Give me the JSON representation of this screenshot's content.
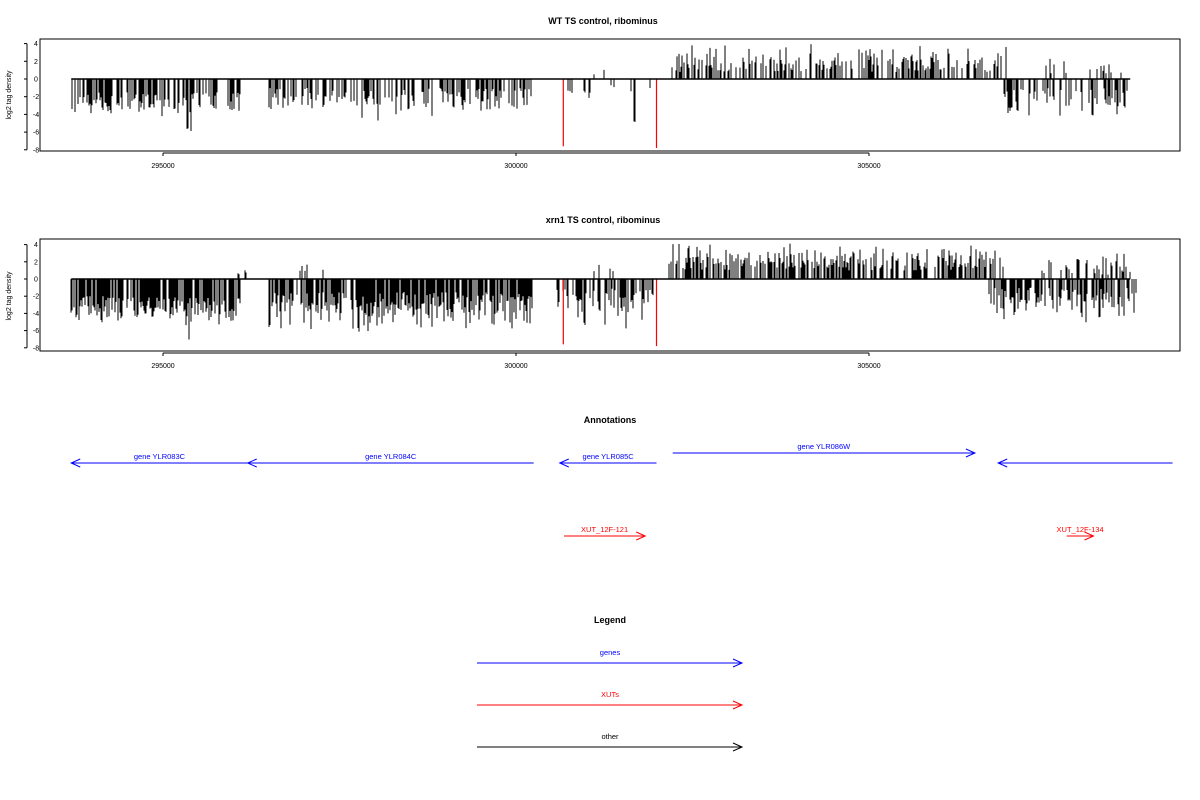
{
  "chart_data": [
    {
      "type": "bar",
      "title": "WT TS control, ribominus",
      "ylabel": "log2 tag density",
      "xlim": [
        293500,
        309300
      ],
      "ylim": [
        -8,
        4.5
      ],
      "x_ticks": [
        295000,
        300000,
        305000
      ],
      "x_tick_labels": [
        "295000",
        "300000",
        "305000"
      ],
      "y_ticks": [
        4,
        2,
        0,
        -2,
        -4,
        -6,
        -8
      ],
      "y_tick_labels": [
        "4",
        "2",
        "0",
        "-2",
        "-4",
        "-6",
        "-8"
      ],
      "baseline": {
        "x_start": 293700,
        "x_end": 308700,
        "y": 0
      },
      "segments": [
        {
          "x_start": 293700,
          "x_end": 296100,
          "sign": -1,
          "min": 1.5,
          "max": 4.5,
          "density": 0.55
        },
        {
          "x_start": 295300,
          "x_end": 295400,
          "sign": -1,
          "min": 5.5,
          "max": 6.3,
          "density": 0.2
        },
        {
          "x_start": 296500,
          "x_end": 300250,
          "sign": -1,
          "min": 1.0,
          "max": 4.8,
          "density": 0.5
        },
        {
          "x_start": 300650,
          "x_end": 301050,
          "sign": -1,
          "min": 0.8,
          "max": 2.5,
          "density": 0.3
        },
        {
          "x_start": 301050,
          "x_end": 301300,
          "sign": 1,
          "min": 0.5,
          "max": 1.5,
          "density": 0.15
        },
        {
          "x_start": 301300,
          "x_end": 301900,
          "sign": -1,
          "min": 0.5,
          "max": 2.0,
          "density": 0.15
        },
        {
          "x_start": 301650,
          "x_end": 301750,
          "sign": -1,
          "min": 4.5,
          "max": 5.0,
          "density": 0.1
        },
        {
          "x_start": 302150,
          "x_end": 306950,
          "sign": 1,
          "min": 0.8,
          "max": 4.0,
          "density": 0.45
        },
        {
          "x_start": 306900,
          "x_end": 308700,
          "sign": -1,
          "min": 1.0,
          "max": 4.7,
          "density": 0.45
        },
        {
          "x_start": 307500,
          "x_end": 308600,
          "sign": 1,
          "min": 0.5,
          "max": 2.6,
          "density": 0.15
        }
      ],
      "highlight_bars": [
        {
          "x": 300670,
          "y": -7.6,
          "color": "#ff0000"
        },
        {
          "x": 301990,
          "y": -7.8,
          "color": "#ff0000"
        }
      ]
    },
    {
      "type": "bar",
      "title": "xrn1 TS control, ribominus",
      "ylabel": "log2 tag density",
      "xlim": [
        293500,
        309300
      ],
      "ylim": [
        -8,
        4.5
      ],
      "x_ticks": [
        295000,
        300000,
        305000
      ],
      "x_tick_labels": [
        "295000",
        "300000",
        "305000"
      ],
      "y_ticks": [
        4,
        2,
        0,
        -2,
        -4,
        -6,
        -8
      ],
      "y_tick_labels": [
        "4",
        "2",
        "0",
        "-2",
        "-4",
        "-6",
        "-8"
      ],
      "baseline": {
        "x_start": 293700,
        "x_end": 308700,
        "y": 0
      },
      "segments": [
        {
          "x_start": 293700,
          "x_end": 296100,
          "sign": -1,
          "min": 2.0,
          "max": 5.5,
          "density": 0.8
        },
        {
          "x_start": 295350,
          "x_end": 295450,
          "sign": -1,
          "min": 6.5,
          "max": 7.6,
          "density": 0.2
        },
        {
          "x_start": 296000,
          "x_end": 296200,
          "sign": 1,
          "min": 0.5,
          "max": 1.3,
          "density": 0.2
        },
        {
          "x_start": 296500,
          "x_end": 300250,
          "sign": -1,
          "min": 1.5,
          "max": 6.5,
          "density": 0.85
        },
        {
          "x_start": 296900,
          "x_end": 297300,
          "sign": 1,
          "min": 0.5,
          "max": 2.0,
          "density": 0.2
        },
        {
          "x_start": 300550,
          "x_end": 301950,
          "sign": -1,
          "min": 1.0,
          "max": 6.0,
          "density": 0.6
        },
        {
          "x_start": 301100,
          "x_end": 301400,
          "sign": 1,
          "min": 0.5,
          "max": 2.0,
          "density": 0.2
        },
        {
          "x_start": 302150,
          "x_end": 306900,
          "sign": 1,
          "min": 1.0,
          "max": 4.3,
          "density": 0.6
        },
        {
          "x_start": 306700,
          "x_end": 308800,
          "sign": -1,
          "min": 1.0,
          "max": 5.4,
          "density": 0.6
        },
        {
          "x_start": 307400,
          "x_end": 308800,
          "sign": 1,
          "min": 0.5,
          "max": 3.4,
          "density": 0.3
        }
      ],
      "highlight_bars": [
        {
          "x": 300670,
          "y": -7.6,
          "color": "#ff0000"
        },
        {
          "x": 301990,
          "y": -7.8,
          "color": "#ff0000"
        }
      ]
    }
  ],
  "annotations": {
    "title": "Annotations",
    "xlim": [
      293500,
      309300
    ],
    "items": [
      {
        "label": "gene YLR083C",
        "x_start": 296200,
        "x_end": 293700,
        "lane": "upper",
        "color": "#0000ff"
      },
      {
        "label": "gene YLR084C",
        "x_start": 300250,
        "x_end": 296200,
        "lane": "upper",
        "color": "#0000ff"
      },
      {
        "label": "gene YLR085C",
        "x_start": 301990,
        "x_end": 300620,
        "lane": "upper",
        "color": "#0000ff"
      },
      {
        "label": "gene YLR086W",
        "x_start": 302220,
        "x_end": 306500,
        "lane": "top",
        "color": "#0000ff"
      },
      {
        "label": "",
        "x_start": 309300,
        "x_end": 306830,
        "lane": "upper",
        "color": "#0000ff"
      },
      {
        "label": "XUT_12F-121",
        "x_start": 300680,
        "x_end": 301830,
        "lane": "lower",
        "color": "#ff0000"
      },
      {
        "label": "XUT_12F-134",
        "x_start": 307800,
        "x_end": 308180,
        "lane": "lower",
        "color": "#ff0000"
      }
    ]
  },
  "legend": {
    "title": "Legend",
    "items": [
      {
        "label": "genes",
        "color": "#0000ff"
      },
      {
        "label": "XUTs",
        "color": "#ff0000"
      },
      {
        "label": "other",
        "color": "#000000"
      }
    ]
  }
}
